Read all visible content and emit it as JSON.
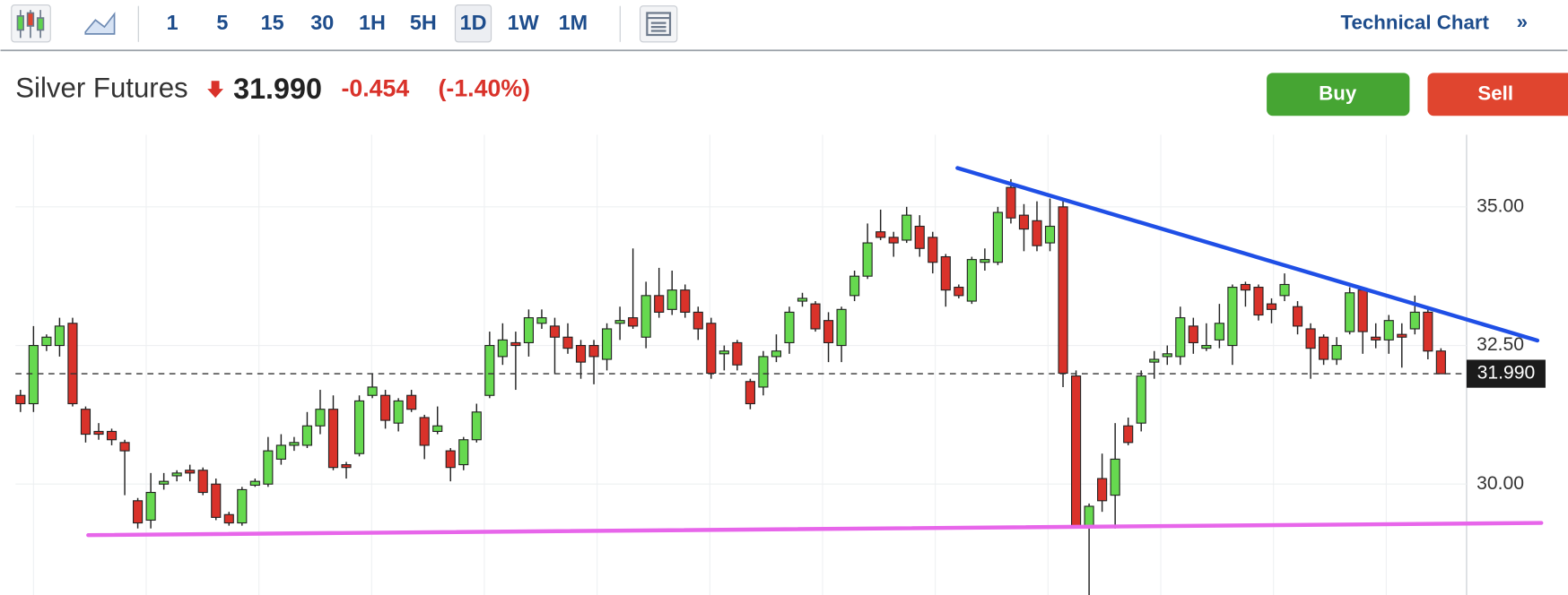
{
  "toolbar": {
    "intervals": [
      "1",
      "5",
      "15",
      "30",
      "1H",
      "5H",
      "1D",
      "1W",
      "1M"
    ],
    "active_interval": "1D",
    "link": "Technical Chart",
    "link_icon": "»"
  },
  "quote": {
    "name": "Silver Futures",
    "price": "31.990",
    "change": "-0.454",
    "change_percent": "(-1.40%)"
  },
  "actions": {
    "buy": "Buy",
    "sell": "Sell"
  },
  "chart_data": {
    "type": "candlestick",
    "up_color": "#66d94f",
    "down_color": "#d9322a",
    "ylim": [
      28.0,
      36.3
    ],
    "yticks": [
      {
        "value": 30,
        "label": "30.00"
      },
      {
        "value": 32.5,
        "label": "32.50"
      },
      {
        "value": 35,
        "label": "35.00"
      }
    ],
    "grid": true,
    "last_price": {
      "value": 31.99,
      "label": "31.990"
    },
    "open": [
      31.6,
      31.45,
      32.5,
      32.5,
      32.9,
      31.35,
      30.95,
      30.95,
      30.75,
      29.7,
      29.35,
      30.0,
      30.15,
      30.25,
      30.25,
      30.0,
      29.45,
      29.3,
      29.98,
      30.0,
      30.45,
      30.7,
      30.7,
      31.05,
      31.35,
      30.35,
      30.55,
      31.6,
      31.6,
      31.1,
      31.6,
      31.2,
      30.95,
      30.6,
      30.35,
      30.8,
      31.6,
      32.3,
      32.55,
      32.55,
      32.9,
      32.85,
      32.65,
      32.5,
      32.5,
      32.25,
      32.9,
      33.0,
      32.65,
      33.4,
      33.15,
      33.5,
      33.1,
      32.9,
      32.35,
      32.55,
      31.85,
      31.75,
      32.3,
      32.55,
      33.3,
      33.25,
      32.95,
      32.5,
      33.4,
      33.75,
      34.55,
      34.45,
      34.4,
      34.65,
      34.45,
      34.1,
      33.55,
      33.3,
      34.0,
      34.0,
      35.35,
      34.85,
      34.75,
      34.35,
      35.0,
      31.95,
      29.25,
      30.1,
      29.8,
      31.05,
      31.1,
      32.2,
      32.3,
      32.3,
      32.85,
      32.45,
      32.6,
      32.5,
      33.6,
      33.55,
      33.25,
      33.4,
      33.2,
      32.8,
      32.65,
      32.25,
      32.75,
      33.5,
      32.65,
      32.6,
      32.7,
      32.8,
      33.1,
      32.4
    ],
    "high": [
      31.7,
      32.85,
      32.7,
      33.0,
      33.0,
      31.4,
      31.1,
      31.0,
      30.8,
      29.75,
      30.2,
      30.2,
      30.25,
      30.35,
      30.3,
      30.1,
      29.5,
      29.95,
      30.1,
      30.85,
      30.9,
      30.85,
      31.3,
      31.7,
      31.6,
      30.4,
      31.6,
      32.0,
      31.7,
      31.55,
      31.7,
      31.25,
      31.4,
      30.65,
      30.85,
      31.45,
      32.75,
      32.9,
      32.75,
      33.15,
      33.15,
      33.0,
      32.9,
      32.6,
      32.6,
      32.9,
      33.2,
      34.25,
      33.65,
      33.9,
      33.85,
      33.6,
      33.2,
      33.0,
      32.5,
      32.6,
      31.9,
      32.4,
      32.7,
      33.2,
      33.45,
      33.3,
      33.1,
      33.2,
      33.85,
      34.7,
      34.95,
      34.55,
      35.0,
      34.85,
      34.55,
      34.15,
      33.6,
      34.1,
      34.25,
      35.0,
      35.5,
      35.05,
      35.1,
      35.15,
      35.15,
      32.05,
      29.65,
      30.55,
      31.1,
      31.2,
      32.05,
      32.4,
      32.5,
      33.2,
      33.0,
      32.9,
      33.25,
      33.6,
      33.65,
      33.6,
      33.35,
      33.8,
      33.3,
      32.9,
      32.7,
      32.65,
      33.55,
      33.55,
      32.9,
      33.05,
      32.9,
      33.4,
      33.15,
      32.45
    ],
    "low": [
      31.3,
      31.3,
      32.4,
      32.3,
      31.4,
      30.75,
      30.8,
      30.7,
      29.8,
      29.2,
      29.2,
      29.9,
      30.05,
      30.05,
      29.8,
      29.35,
      29.25,
      29.25,
      29.95,
      29.95,
      30.35,
      30.6,
      30.65,
      30.9,
      30.25,
      30.1,
      30.5,
      31.55,
      31.0,
      30.95,
      31.3,
      30.45,
      30.9,
      30.05,
      30.25,
      30.75,
      31.55,
      32.15,
      31.7,
      32.3,
      32.8,
      32.0,
      32.35,
      31.9,
      31.8,
      32.05,
      32.6,
      32.8,
      32.45,
      33.0,
      33.05,
      33.0,
      32.6,
      31.9,
      32.05,
      32.05,
      31.35,
      31.6,
      32.2,
      32.35,
      33.2,
      32.75,
      32.2,
      32.2,
      33.3,
      33.7,
      34.4,
      34.1,
      34.35,
      34.1,
      33.8,
      33.2,
      33.35,
      33.25,
      33.85,
      33.95,
      34.7,
      34.2,
      34.2,
      34.2,
      31.75,
      29.2,
      28.0,
      29.5,
      29.2,
      30.7,
      30.95,
      31.9,
      32.15,
      32.15,
      32.35,
      32.4,
      32.45,
      32.15,
      33.2,
      32.95,
      32.9,
      33.3,
      32.7,
      31.9,
      32.15,
      32.15,
      32.7,
      32.35,
      32.45,
      32.35,
      32.1,
      32.7,
      32.25,
      31.99
    ],
    "close": [
      31.45,
      32.5,
      32.65,
      32.85,
      31.45,
      30.9,
      30.9,
      30.8,
      30.6,
      29.3,
      29.85,
      30.05,
      30.2,
      30.2,
      29.85,
      29.4,
      29.3,
      29.9,
      30.05,
      30.6,
      30.7,
      30.75,
      31.05,
      31.35,
      30.3,
      30.3,
      31.5,
      31.75,
      31.15,
      31.5,
      31.35,
      30.7,
      31.05,
      30.3,
      30.8,
      31.3,
      32.5,
      32.6,
      32.5,
      33.0,
      33.0,
      32.65,
      32.45,
      32.2,
      32.3,
      32.8,
      32.95,
      32.85,
      33.4,
      33.1,
      33.5,
      33.1,
      32.8,
      32.0,
      32.4,
      32.15,
      31.45,
      32.3,
      32.4,
      33.1,
      33.35,
      32.8,
      32.55,
      33.15,
      33.75,
      34.35,
      34.45,
      34.35,
      34.85,
      34.25,
      34.0,
      33.5,
      33.4,
      34.05,
      34.05,
      34.9,
      34.8,
      34.6,
      34.3,
      34.65,
      32.0,
      29.25,
      29.6,
      29.7,
      30.45,
      30.75,
      31.95,
      32.25,
      32.35,
      33.0,
      32.55,
      32.5,
      32.9,
      33.55,
      33.5,
      33.05,
      33.15,
      33.6,
      32.85,
      32.45,
      32.25,
      32.5,
      33.45,
      32.75,
      32.6,
      32.95,
      32.65,
      33.1,
      32.4,
      31.99
    ],
    "trendlines": [
      {
        "color": "#1f4fe6",
        "x": [
          71.9,
          116.4
        ],
        "y": [
          35.7,
          32.59
        ]
      },
      {
        "color": "#e766ea",
        "x": [
          5.2,
          116.7
        ],
        "y": [
          29.08,
          29.3
        ]
      }
    ]
  }
}
